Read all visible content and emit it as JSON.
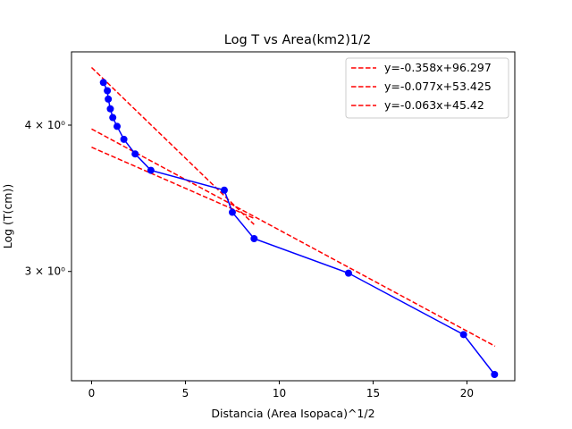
{
  "chart_data": {
    "type": "line",
    "title": "Log T vs Area(km2)1/2",
    "xlabel": "Distancia (Area Isopaca)^1/2",
    "ylabel": "Log (T(cm))",
    "y_scale": "log",
    "xlim": [
      -1.07,
      22.55
    ],
    "ylim": [
      2.42,
      4.62
    ],
    "x_ticks": [
      0,
      5,
      10,
      15,
      20
    ],
    "y_ticks": [
      {
        "value": 3,
        "label": "3 × 10⁰"
      },
      {
        "value": 4,
        "label": "4 × 10⁰"
      }
    ],
    "grid": false,
    "legend_position": "top-right",
    "data_series": {
      "color": "#0000ff",
      "x": [
        0.63,
        0.84,
        0.89,
        1.0,
        1.13,
        1.36,
        1.72,
        2.32,
        3.16,
        7.07,
        7.5,
        8.66,
        13.69,
        19.82,
        21.47
      ],
      "y": [
        4.35,
        4.28,
        4.21,
        4.13,
        4.06,
        3.99,
        3.89,
        3.78,
        3.66,
        3.52,
        3.37,
        3.2,
        2.99,
        2.65,
        2.45
      ]
    },
    "fit_lines": [
      {
        "name": "y=-0.358x+96.297",
        "color": "#ff0000",
        "x": [
          0,
          8.66
        ],
        "y": [
          4.48,
          3.29
        ]
      },
      {
        "name": "y=-0.077x+53.425",
        "color": "#ff0000",
        "x": [
          0,
          21.5
        ],
        "y": [
          3.97,
          2.59
        ]
      },
      {
        "name": "y=-0.063x+45.42",
        "color": "#ff0000",
        "x": [
          0,
          8.66
        ],
        "y": [
          3.83,
          3.33
        ]
      }
    ]
  }
}
